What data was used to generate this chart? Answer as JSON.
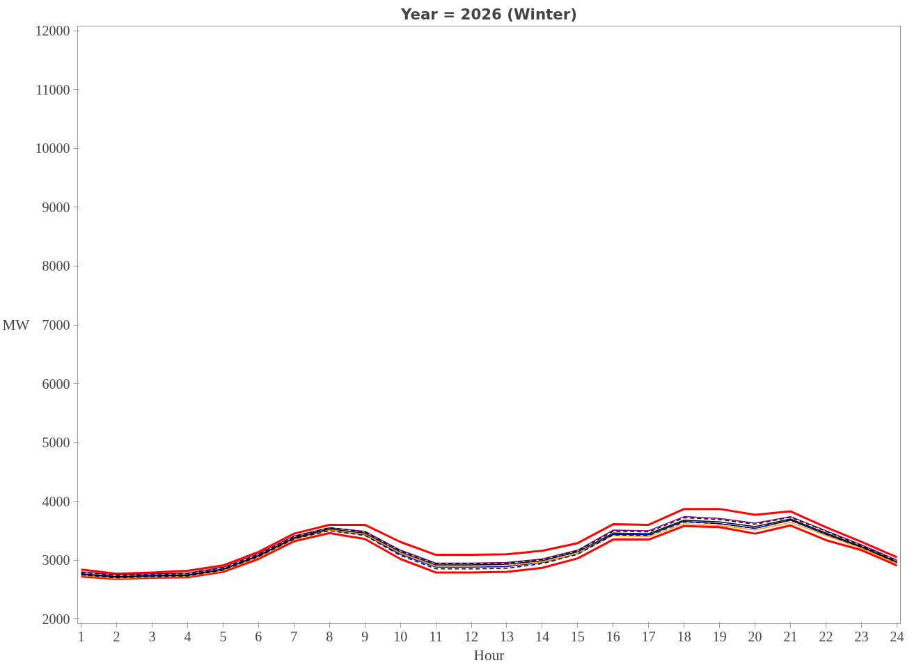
{
  "chart_data": {
    "type": "line",
    "title": "Year = 2026 (Winter)",
    "xlabel": "Hour",
    "ylabel": "MW",
    "x": [
      1,
      2,
      3,
      4,
      5,
      6,
      7,
      8,
      9,
      10,
      11,
      12,
      13,
      14,
      15,
      16,
      17,
      18,
      19,
      20,
      21,
      22,
      23,
      24
    ],
    "xlim": [
      0.9,
      24.1
    ],
    "xticks": [
      1,
      2,
      3,
      4,
      5,
      6,
      7,
      8,
      9,
      10,
      11,
      12,
      13,
      14,
      15,
      16,
      17,
      18,
      19,
      20,
      21,
      22,
      23,
      24
    ],
    "ylim": [
      1920,
      12080
    ],
    "yticks": [
      2000,
      3000,
      4000,
      5000,
      6000,
      7000,
      8000,
      9000,
      10000,
      11000,
      12000
    ],
    "grid": false,
    "marker": "none",
    "series": [
      {
        "color": "#ff0000",
        "line_style": "solid",
        "values": [
          2840,
          2770,
          2790,
          2820,
          2910,
          3140,
          3450,
          3600,
          3600,
          3310,
          3090,
          3090,
          3100,
          3160,
          3290,
          3610,
          3600,
          3870,
          3870,
          3770,
          3830,
          3560,
          3310,
          3050
        ]
      },
      {
        "color": "#ff0000",
        "line_style": "solid",
        "values": [
          2720,
          2680,
          2700,
          2710,
          2800,
          3020,
          3320,
          3460,
          3360,
          3020,
          2790,
          2790,
          2800,
          2870,
          3030,
          3350,
          3350,
          3580,
          3560,
          3450,
          3590,
          3340,
          3170,
          2910
        ]
      },
      {
        "color": "#800080",
        "line_style": "solid",
        "values": [
          2800,
          2750,
          2770,
          2780,
          2880,
          3110,
          3410,
          3550,
          3490,
          3170,
          2950,
          2950,
          2960,
          3020,
          3170,
          3510,
          3500,
          3740,
          3710,
          3630,
          3740,
          3500,
          3260,
          3000
        ]
      },
      {
        "color": "#0000ff",
        "line_style": "solid",
        "values": [
          2760,
          2710,
          2730,
          2740,
          2840,
          3070,
          3370,
          3510,
          3430,
          3100,
          2880,
          2880,
          2890,
          2960,
          3110,
          3440,
          3430,
          3660,
          3620,
          3540,
          3680,
          3440,
          3220,
          2960
        ]
      },
      {
        "color": "#ffa500",
        "line_style": "solid",
        "values": [
          2740,
          2690,
          2710,
          2720,
          2820,
          3050,
          3350,
          3510,
          3440,
          3120,
          2900,
          2900,
          2910,
          2970,
          3110,
          3420,
          3400,
          3620,
          3590,
          3510,
          3640,
          3420,
          3200,
          2940
        ]
      },
      {
        "color": "#000000",
        "line_style": "solid",
        "values": [
          2770,
          2720,
          2740,
          2750,
          2850,
          3080,
          3380,
          3530,
          3460,
          3140,
          2920,
          2920,
          2930,
          2990,
          3140,
          3460,
          3450,
          3680,
          3650,
          3570,
          3700,
          3460,
          3230,
          2970
        ]
      },
      {
        "color": "#000000",
        "line_style": "dashed",
        "values": [
          2790,
          2740,
          2760,
          2770,
          2870,
          3100,
          3400,
          3550,
          3480,
          3160,
          2940,
          2940,
          2950,
          3010,
          3160,
          3490,
          3480,
          3720,
          3690,
          3610,
          3730,
          3490,
          3250,
          2990
        ]
      },
      {
        "color": "#000000",
        "line_style": "dashed",
        "values": [
          2750,
          2700,
          2720,
          2730,
          2830,
          3060,
          3360,
          3500,
          3420,
          3080,
          2850,
          2850,
          2860,
          2940,
          3100,
          3430,
          3420,
          3650,
          3620,
          3540,
          3680,
          3440,
          3220,
          2960
        ]
      }
    ]
  }
}
